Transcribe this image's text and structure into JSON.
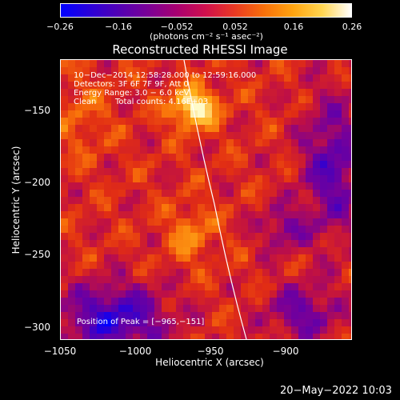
{
  "colorbar": {
    "ticks": [
      "−0.26",
      "−0.16",
      "−0.052",
      "0.052",
      "0.16",
      "0.26"
    ],
    "tick_values": [
      -0.26,
      -0.16,
      -0.052,
      0.052,
      0.16,
      0.26
    ],
    "unit": "(photons cm⁻² s⁻¹ asec⁻²)",
    "colors": [
      "#0000ff",
      "#7a0096",
      "#d0104c",
      "#f8700a",
      "#ffd550",
      "#ffffff"
    ]
  },
  "chart_data": {
    "type": "heatmap",
    "title": "Reconstructed RHESSI Image",
    "xlabel": "Heliocentric X (arcsec)",
    "ylabel": "Heliocentric Y (arcsec)",
    "xlim": [
      -1050,
      -880
    ],
    "ylim": [
      -305,
      -120
    ],
    "x_ticks": [
      "−1050",
      "−1000",
      "−950",
      "−900"
    ],
    "x_tick_values": [
      -1050,
      -1000,
      -950,
      -900
    ],
    "y_ticks": [
      "−150",
      "−200",
      "−250",
      "−300"
    ],
    "y_tick_values": [
      -150,
      -200,
      -250,
      -300
    ],
    "peak": [
      -965,
      -151
    ],
    "annotations": {
      "time": "10−Dec−2014 12:58:28.000 to 12:59:16.000",
      "detectors": "Detectors: 3F 6F 7F 9F, Att 0",
      "energy": "Energy Range: 3.0 − 6.0 keV",
      "clean": "Clean",
      "counts": "Total counts: 4.16E+03",
      "peak_label": "Position of Peak = [−965,−151]"
    }
  },
  "footer": {
    "timestamp": "20−May−2022 10:03"
  }
}
